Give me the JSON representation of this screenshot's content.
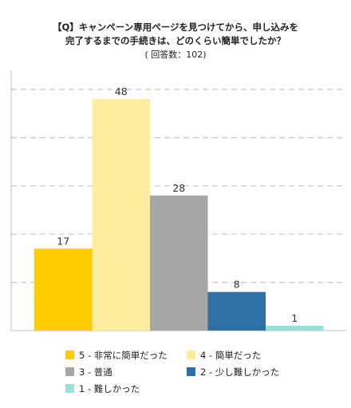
{
  "title": {
    "line1": "【Q】キャンペーン専用ページを見つけてから、申し込みを",
    "line2": "完了するまでの手続きは、どのくらい簡単でしたか？",
    "line3": "( 回答数：102)"
  },
  "chart_data": {
    "type": "bar",
    "title": "【Q】キャンペーン専用ページを見つけてから、申し込みを完了するまでの手続きは、どのくらい簡単でしたか？",
    "subtitle": "( 回答数：102)",
    "ylim": [
      0,
      50
    ],
    "grid": true,
    "legend_position": "bottom",
    "series": [
      {
        "name": "5 - 非常に簡単だった",
        "value": 17,
        "label": "17",
        "color": "#FFCC00"
      },
      {
        "name": "4 - 簡単だった",
        "value": 48,
        "label": "48",
        "color": "#FFEC9E"
      },
      {
        "name": "3 - 普通",
        "value": 28,
        "label": "28",
        "color": "#A6A6A6"
      },
      {
        "name": "2 - 少し難しかった",
        "value": 8,
        "label": "8",
        "color": "#2E70A6"
      },
      {
        "name": "1 - 難しかった",
        "value": 1,
        "label": "1",
        "color": "#9BE0DA"
      }
    ]
  },
  "legend": [
    {
      "label": "5 - 非常に簡単だった",
      "color": "#FFCC00"
    },
    {
      "label": "4 - 簡単だった",
      "color": "#FFEC9E"
    },
    {
      "label": "3 - 普通",
      "color": "#A6A6A6"
    },
    {
      "label": "2 - 少し難しかった",
      "color": "#2E70A6"
    },
    {
      "label": "1 - 難しかった",
      "color": "#9BE0DA"
    }
  ]
}
